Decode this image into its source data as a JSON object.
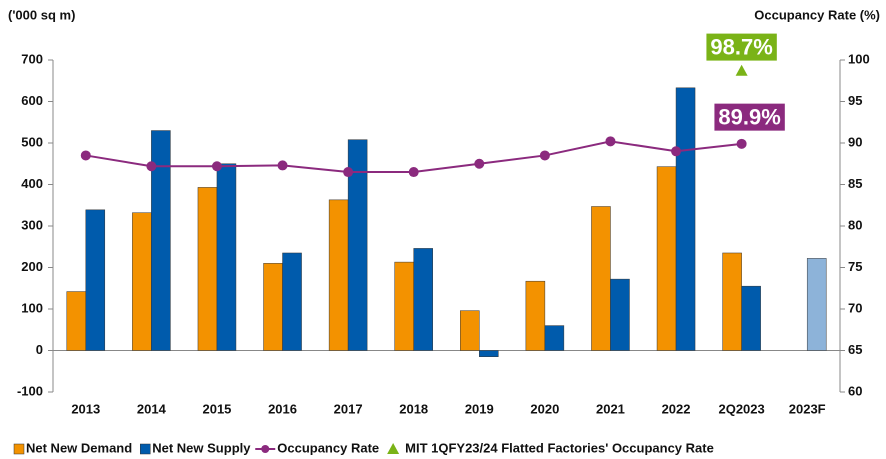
{
  "chart_data": {
    "type": "bar",
    "ylabel": "('000 sq m)",
    "y2label": "Occupancy Rate (%)",
    "categories": [
      "2013",
      "2014",
      "2015",
      "2016",
      "2017",
      "2018",
      "2019",
      "2020",
      "2021",
      "2022",
      "2Q2023",
      "2023F"
    ],
    "series": [
      {
        "name": "Net New Demand",
        "type": "bar",
        "color": "#f39200",
        "values": [
          142,
          332,
          393,
          210,
          363,
          213,
          96,
          167,
          347,
          443,
          235,
          null
        ]
      },
      {
        "name": "Net New Supply",
        "type": "bar",
        "color": "#005bac",
        "colors": [
          "#005bac",
          "#005bac",
          "#005bac",
          "#005bac",
          "#005bac",
          "#005bac",
          "#005bac",
          "#005bac",
          "#005bac",
          "#005bac",
          "#005bac",
          "#8db3d9"
        ],
        "values": [
          339,
          530,
          450,
          235,
          508,
          246,
          -15,
          60,
          172,
          633,
          155,
          222
        ]
      },
      {
        "name": "Occupancy Rate",
        "type": "line",
        "axis": "y2",
        "color": "#8b2a7e",
        "values": [
          88.5,
          87.2,
          87.2,
          87.3,
          86.5,
          86.5,
          87.5,
          88.5,
          90.2,
          89.0,
          89.9,
          null
        ],
        "value_labels": [
          null,
          null,
          null,
          null,
          null,
          null,
          null,
          null,
          null,
          null,
          "89.9%",
          null
        ],
        "label_color": "#8b2a7e"
      },
      {
        "name": "MIT 1QFY23/24 Flatted Factories' Occupancy Rate",
        "type": "triangle",
        "axis": "y2",
        "color": "#7ab317",
        "values": [
          null,
          null,
          null,
          null,
          null,
          null,
          null,
          null,
          null,
          null,
          98.7,
          null
        ],
        "value_labels": [
          null,
          null,
          null,
          null,
          null,
          null,
          null,
          null,
          null,
          null,
          "98.7%",
          null
        ],
        "label_color": "#7ab317"
      }
    ],
    "ylim": [
      -100,
      700
    ],
    "yticks": [
      -100,
      0,
      100,
      200,
      300,
      400,
      500,
      600,
      700
    ],
    "y2lim": [
      60,
      100
    ],
    "y2ticks": [
      60,
      65,
      70,
      75,
      80,
      85,
      90,
      95,
      100
    ],
    "legend": "bottom"
  }
}
